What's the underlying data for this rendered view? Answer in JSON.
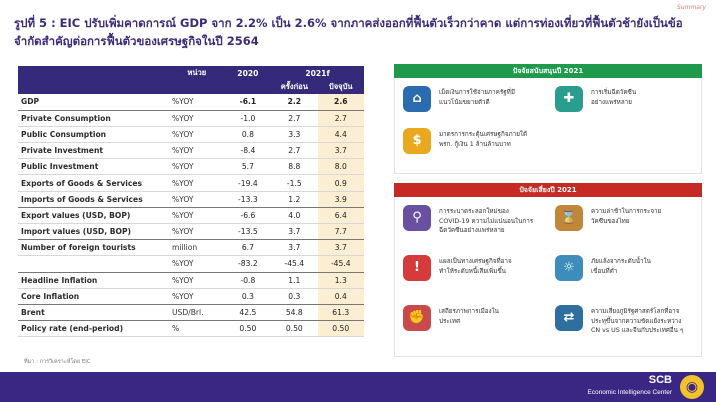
{
  "summary_tag": "Summary",
  "title": "รูปที่ 5 : EIC ปรับเพิ่มคาดการณ์ GDP จาก 2.2% เป็น 2.6% จากภาคส่งออกที่ฟื้นตัวเร็วกว่าคาด แต่การท่องเที่ยวที่ฟื้นตัวช้ายังเป็นข้อจำกัดสำคัญต่อการฟื้นตัวของเศรษฐกิจในปี 2564",
  "table": {
    "header": {
      "unit": "หน่วย",
      "y2020": "2020",
      "y2021f": "2021f",
      "prev": "ครั้งก่อน",
      "current": "ปัจจุบัน"
    },
    "rows": [
      {
        "label": "GDP",
        "unit": "%YOY",
        "v2020": "-6.1",
        "prev": "2.2",
        "cur": "2.6"
      },
      {
        "label": "Private Consumption",
        "unit": "%YOY",
        "v2020": "-1.0",
        "prev": "2.7",
        "cur": "2.7"
      },
      {
        "label": "Public Consumption",
        "unit": "%YOY",
        "v2020": "0.8",
        "prev": "3.3",
        "cur": "4.4"
      },
      {
        "label": "Private Investment",
        "unit": "%YOY",
        "v2020": "-8.4",
        "prev": "2.7",
        "cur": "3.7"
      },
      {
        "label": "Public Investment",
        "unit": "%YOY",
        "v2020": "5.7",
        "prev": "8.8",
        "cur": "8.0"
      },
      {
        "label": "Exports of Goods & Services",
        "unit": "%YOY",
        "v2020": "-19.4",
        "prev": "-1.5",
        "cur": "0.9"
      },
      {
        "label": "Imports of Goods & Services",
        "unit": "%YOY",
        "v2020": "-13.3",
        "prev": "1.2",
        "cur": "3.9"
      },
      {
        "label": "Export values (USD, BOP)",
        "unit": "%YOY",
        "v2020": "-6.6",
        "prev": "4.0",
        "cur": "6.4"
      },
      {
        "label": "Import values (USD, BOP)",
        "unit": "%YOY",
        "v2020": "-13.5",
        "prev": "3.7",
        "cur": "7.7"
      },
      {
        "label": "Number of foreign tourists",
        "unit": "million",
        "v2020": "6.7",
        "prev": "3.7",
        "cur": "3.7"
      },
      {
        "label": "",
        "unit": "%YOY",
        "v2020": "-83.2",
        "prev": "-45.4",
        "cur": "-45.4"
      },
      {
        "label": "Headline Inflation",
        "unit": "%YOY",
        "v2020": "-0.8",
        "prev": "1.1",
        "cur": "1.3"
      },
      {
        "label": "Core Inflation",
        "unit": "%YOY",
        "v2020": "0.3",
        "prev": "0.3",
        "cur": "0.4"
      },
      {
        "label": "Brent",
        "unit": "USD/Brl.",
        "v2020": "42.5",
        "prev": "54.8",
        "cur": "61.3"
      },
      {
        "label": "Policy rate (end-period)",
        "unit": "%",
        "v2020": "0.50",
        "prev": "0.50",
        "cur": "0.50"
      }
    ]
  },
  "source": "ที่มา : การวิเคราะห์โดย EIC",
  "support": {
    "heading": "ปัจจัยสนับสนุนปี 2021",
    "items": [
      {
        "icon": "bank-icon",
        "text": "เม็ดเงินการใช้จ่ายภาครัฐที่มี\nแนวโน้มขยายตัวดี",
        "color": "#2b6cb0",
        "glyph": "⌂"
      },
      {
        "icon": "vaccine-icon",
        "text": "การเริ่มฉีดวัคซีน\nอย่างแพร่หลาย",
        "color": "#2a9d8f",
        "glyph": "✚"
      },
      {
        "icon": "coins-icon",
        "text": "มาตรการกระตุ้นเศรษฐกิจภายใต้\nพรก. กู้เงิน 1 ล้านล้านบาท",
        "color": "#e9a820",
        "glyph": "$"
      }
    ]
  },
  "risk": {
    "heading": "ปัจจัยเสี่ยงปี 2021",
    "items": [
      {
        "icon": "virus-search-icon",
        "text": "การระบาดระลอกใหม่ของ\nCOVID-19 ความไม่แน่นอนในการ\nฉีดวัคซีนอย่างแพร่หลาย",
        "color": "#6b4fa0",
        "glyph": "⚲"
      },
      {
        "icon": "hourglass-icon",
        "text": "ความล่าช้าในการกระจาย\nวัคซีนของไทย",
        "color": "#c0873a",
        "glyph": "⌛"
      },
      {
        "icon": "debt-icon",
        "text": "แผลเป็นทางเศรษฐกิจที่อาจ\nทำให้ระดับหนี้เสียเพิ่มขึ้น",
        "color": "#d63b3b",
        "glyph": "!"
      },
      {
        "icon": "drought-icon",
        "text": "ภัยแล้งจากระดับน้ำใน\nเขื่อนที่ต่ำ",
        "color": "#3c8dbc",
        "glyph": "☼"
      },
      {
        "icon": "protest-icon",
        "text": "เสถียรภาพการเมืองใน\nประเทศ",
        "color": "#c94a4a",
        "glyph": "✊"
      },
      {
        "icon": "trade-war-icon",
        "text": "ความเสี่ยงภูมิรัฐศาสตร์โลกที่อาจ\nประทุขึ้นจากความขัดแย้งระหว่าง\nCN vs US และจีนกับประเทศอื่น ๆ",
        "color": "#2f6f9f",
        "glyph": "⇄"
      }
    ]
  },
  "footer": {
    "brand": "SCB",
    "subtitle": "Economic Intelligence Center"
  }
}
